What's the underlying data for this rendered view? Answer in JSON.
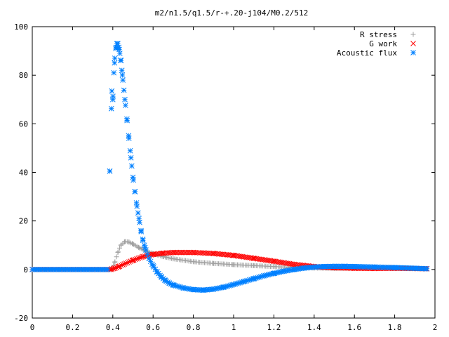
{
  "chart_data": {
    "type": "scatter",
    "title": "m2/n1.5/q1.5/r-+.20-j104/M0.2/512",
    "xlabel": "",
    "ylabel": "",
    "xlim": [
      0,
      2
    ],
    "ylim": [
      -20,
      100
    ],
    "x_ticks": [
      "0",
      "0.2",
      "0.4",
      "0.6",
      "0.8",
      "1",
      "1.2",
      "1.4",
      "1.6",
      "1.8",
      "2"
    ],
    "y_ticks": [
      "-20",
      "0",
      "20",
      "40",
      "60",
      "80",
      "100"
    ],
    "grid": false,
    "legend_position": "top-right",
    "series": [
      {
        "name": "R stress",
        "marker": "plus",
        "color": "#a0a0a0",
        "points": [
          [
            0.395,
            0.3
          ],
          [
            0.41,
            3.0
          ],
          [
            0.425,
            7.0
          ],
          [
            0.44,
            10.0
          ],
          [
            0.46,
            11.5
          ],
          [
            0.48,
            11.3
          ],
          [
            0.5,
            10.5
          ],
          [
            0.53,
            9.0
          ],
          [
            0.56,
            7.8
          ],
          [
            0.6,
            6.5
          ],
          [
            0.65,
            5.3
          ],
          [
            0.7,
            4.4
          ],
          [
            0.8,
            3.2
          ],
          [
            0.9,
            2.5
          ],
          [
            1.0,
            2.0
          ],
          [
            1.1,
            1.6
          ],
          [
            1.2,
            1.2
          ],
          [
            1.3,
            0.8
          ],
          [
            1.4,
            0.6
          ],
          [
            1.5,
            0.5
          ],
          [
            1.6,
            0.6
          ],
          [
            1.7,
            0.6
          ],
          [
            1.8,
            0.5
          ],
          [
            1.9,
            0.4
          ],
          [
            1.96,
            0.3
          ]
        ]
      },
      {
        "name": "G work",
        "marker": "cross",
        "color": "#ff0000",
        "points": [
          [
            0.395,
            0.2
          ],
          [
            0.41,
            0.5
          ],
          [
            0.43,
            1.2
          ],
          [
            0.45,
            2.0
          ],
          [
            0.5,
            3.8
          ],
          [
            0.55,
            5.3
          ],
          [
            0.6,
            6.2
          ],
          [
            0.65,
            6.7
          ],
          [
            0.7,
            7.0
          ],
          [
            0.8,
            7.0
          ],
          [
            0.9,
            6.6
          ],
          [
            1.0,
            5.8
          ],
          [
            1.1,
            4.6
          ],
          [
            1.2,
            3.4
          ],
          [
            1.3,
            2.1
          ],
          [
            1.4,
            1.2
          ],
          [
            1.45,
            0.9
          ],
          [
            1.5,
            0.7
          ],
          [
            1.6,
            0.5
          ],
          [
            1.7,
            0.4
          ],
          [
            1.8,
            0.5
          ],
          [
            1.9,
            0.4
          ],
          [
            1.96,
            0.3
          ]
        ]
      },
      {
        "name": "Acoustic flux",
        "marker": "star",
        "color": "#0080ff",
        "points": [
          [
            0.385,
            40.5
          ],
          [
            0.395,
            73.5
          ],
          [
            0.4,
            70.0
          ],
          [
            0.405,
            81.0
          ],
          [
            0.41,
            87.0
          ],
          [
            0.415,
            91.0
          ],
          [
            0.42,
            93.0
          ],
          [
            0.425,
            93.0
          ],
          [
            0.43,
            91.5
          ],
          [
            0.435,
            89.0
          ],
          [
            0.44,
            86.0
          ],
          [
            0.445,
            82.0
          ],
          [
            0.45,
            78.0
          ],
          [
            0.46,
            70.0
          ],
          [
            0.47,
            62.0
          ],
          [
            0.48,
            54.0
          ],
          [
            0.49,
            46.0
          ],
          [
            0.5,
            38.0
          ],
          [
            0.51,
            32.0
          ],
          [
            0.52,
            26.0
          ],
          [
            0.53,
            21.0
          ],
          [
            0.54,
            16.0
          ],
          [
            0.55,
            12.0
          ],
          [
            0.56,
            9.0
          ],
          [
            0.58,
            4.5
          ],
          [
            0.6,
            1.5
          ],
          [
            0.62,
            -1.0
          ],
          [
            0.64,
            -3.0
          ],
          [
            0.66,
            -4.5
          ],
          [
            0.68,
            -5.6
          ],
          [
            0.7,
            -6.4
          ],
          [
            0.75,
            -7.6
          ],
          [
            0.8,
            -8.3
          ],
          [
            0.85,
            -8.5
          ],
          [
            0.9,
            -8.1
          ],
          [
            0.95,
            -7.3
          ],
          [
            1.0,
            -6.2
          ],
          [
            1.05,
            -5.0
          ],
          [
            1.1,
            -3.8
          ],
          [
            1.15,
            -2.6
          ],
          [
            1.2,
            -1.6
          ],
          [
            1.25,
            -0.7
          ],
          [
            1.3,
            0.0
          ],
          [
            1.35,
            0.6
          ],
          [
            1.4,
            1.0
          ],
          [
            1.45,
            1.2
          ],
          [
            1.5,
            1.3
          ],
          [
            1.55,
            1.3
          ],
          [
            1.6,
            1.2
          ],
          [
            1.7,
            1.0
          ],
          [
            1.8,
            0.8
          ],
          [
            1.9,
            0.5
          ],
          [
            1.96,
            0.3
          ]
        ]
      }
    ]
  }
}
